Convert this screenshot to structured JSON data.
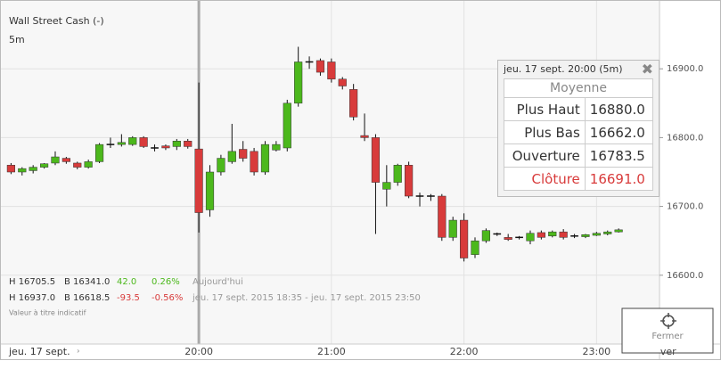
{
  "header": {
    "title": "Wall Street Cash (-)",
    "interval": "5m"
  },
  "chart_data": {
    "type": "candlestick",
    "up_color": "#4cb81c",
    "down_color": "#d83b3b",
    "grid": true,
    "open": [
      16760,
      16750,
      16752,
      16757,
      16763,
      16770,
      16763,
      16757,
      16765,
      16790,
      16790,
      16790,
      16800,
      16785,
      16788,
      16787,
      16795,
      16783.5,
      16695,
      16750,
      16765,
      16783,
      16780,
      16750,
      16782,
      16785,
      16850,
      16910,
      16912,
      16910,
      16885,
      16870,
      16803,
      16800,
      16725,
      16735,
      16760,
      16715,
      16715,
      16715,
      16655,
      16680,
      16630,
      16650,
      16660,
      16655,
      16655,
      16650,
      16662,
      16657,
      16663,
      16657,
      16656,
      16658,
      16660,
      16663
    ],
    "high": [
      16763,
      16757,
      16760,
      16763,
      16780,
      16772,
      16765,
      16768,
      16792,
      16800,
      16805,
      16802,
      16802,
      16790,
      16790,
      16798,
      16798,
      16880,
      16760,
      16775,
      16820,
      16795,
      16785,
      16795,
      16795,
      16855,
      16932,
      16918,
      16915,
      16915,
      16888,
      16878,
      16835,
      16805,
      16760,
      16762,
      16765,
      16720,
      16718,
      16718,
      16685,
      16690,
      16655,
      16668,
      16662,
      16660,
      16657,
      16665,
      16665,
      16665,
      16667,
      16660,
      16660,
      16663,
      16665,
      16668
    ],
    "low": [
      16747,
      16745,
      16748,
      16755,
      16760,
      16762,
      16754,
      16755,
      16763,
      16785,
      16787,
      16788,
      16785,
      16780,
      16782,
      16782,
      16784,
      16662,
      16685,
      16745,
      16762,
      16765,
      16745,
      16746,
      16780,
      16780,
      16845,
      16900,
      16890,
      16880,
      16870,
      16825,
      16795,
      16660,
      16700,
      16730,
      16712,
      16700,
      16708,
      16650,
      16650,
      16620,
      16625,
      16647,
      16657,
      16650,
      16652,
      16645,
      16652,
      16655,
      16652,
      16654,
      16654,
      16657,
      16658,
      16662
    ],
    "close": [
      16750,
      16755,
      16757,
      16762,
      16772,
      16765,
      16757,
      16765,
      16790,
      16790,
      16793,
      16800,
      16787,
      16785,
      16785,
      16795,
      16787,
      16691,
      16750,
      16770,
      16780,
      16770,
      16750,
      16790,
      16790,
      16850,
      16910,
      16910,
      16895,
      16885,
      16875,
      16830,
      16800,
      16735,
      16735,
      16760,
      16715,
      16715,
      16715,
      16655,
      16680,
      16625,
      16650,
      16665,
      16660,
      16652,
      16655,
      16661,
      16655,
      16663,
      16655,
      16657,
      16659,
      16661,
      16663,
      16666
    ],
    "xlim": [
      -1,
      58.7
    ],
    "xticks": [
      {
        "value": 17,
        "label": "20:00"
      },
      {
        "value": 29,
        "label": "21:00"
      },
      {
        "value": 41,
        "label": "22:00"
      },
      {
        "value": 53,
        "label": "23:00"
      },
      {
        "value": 62,
        "label": "ver"
      }
    ],
    "date_label": "jeu. 17 sept.",
    "ylim": [
      16500,
      17000
    ],
    "yticks": [
      {
        "value": 16600,
        "label": "16600.0"
      },
      {
        "value": 16700,
        "label": "16700.0"
      },
      {
        "value": 16800,
        "label": "16800.0"
      },
      {
        "value": 16900,
        "label": "16900.0"
      }
    ],
    "crosshair_index": 17
  },
  "tooltip": {
    "title": "jeu. 17 sept. 20:00 (5m)",
    "heading": "Moyenne",
    "rows": [
      [
        "Plus Haut",
        "16880.0"
      ],
      [
        "Plus Bas",
        "16662.0"
      ],
      [
        "Ouverture",
        "16783.5"
      ],
      [
        "Clôture",
        "16691.0"
      ]
    ]
  },
  "info": {
    "line1": [
      "H 16705.5",
      "B 16341.0",
      "42.0",
      "0.26%",
      "Aujourd'hui"
    ],
    "line2": [
      "H 16937.0",
      "B 16618.5",
      "-93.5",
      "-0.56%",
      "jeu. 17 sept. 2015 18:35 - jeu. 17 sept. 2015 23:50"
    ],
    "note": "Valeur à titre indicatif"
  },
  "button": {
    "label": "Fermer"
  }
}
